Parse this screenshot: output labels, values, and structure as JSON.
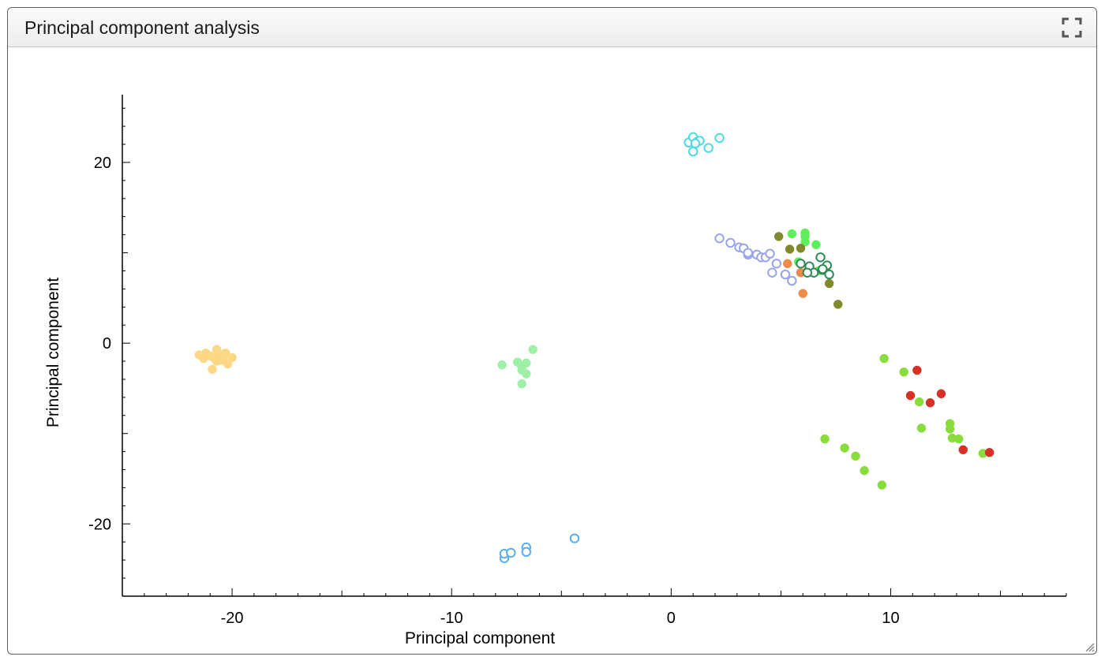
{
  "panel": {
    "title": "Principal component analysis",
    "expand_icon": "fullscreen-icon",
    "resize_icon": "resize-grip-icon"
  },
  "chart_data": {
    "type": "scatter",
    "title": "",
    "xlabel": "Principal component",
    "ylabel": "Principal component",
    "xlim": [
      -25,
      18
    ],
    "ylim": [
      -28,
      27.5
    ],
    "x_ticks": [
      -20,
      -10,
      0,
      10
    ],
    "y_ticks": [
      20,
      0,
      -20
    ],
    "grid": false,
    "legend": "none",
    "series": [
      {
        "color": "#4dd9e0",
        "marker": "circle-open",
        "points": [
          [
            0.8,
            22.2
          ],
          [
            1.0,
            22.8
          ],
          [
            1.2,
            22.3
          ],
          [
            1.3,
            22.4
          ],
          [
            1.7,
            21.6
          ],
          [
            2.2,
            22.7
          ],
          [
            1.0,
            21.2
          ],
          [
            1.1,
            22.1
          ]
        ]
      },
      {
        "color": "#99a4ea",
        "marker": "circle-open",
        "points": [
          [
            2.2,
            11.6
          ],
          [
            2.7,
            11.1
          ],
          [
            3.1,
            10.6
          ],
          [
            3.3,
            10.5
          ],
          [
            3.5,
            9.8
          ],
          [
            3.5,
            10.0
          ],
          [
            3.9,
            9.8
          ],
          [
            4.1,
            9.5
          ],
          [
            4.3,
            9.5
          ],
          [
            4.5,
            9.9
          ],
          [
            4.8,
            8.8
          ],
          [
            4.6,
            7.8
          ],
          [
            5.2,
            7.6
          ],
          [
            5.5,
            6.9
          ]
        ]
      },
      {
        "color": "#f08a4b",
        "marker": "circle-filled",
        "points": [
          [
            5.3,
            8.8
          ],
          [
            5.9,
            7.8
          ],
          [
            6.0,
            5.5
          ],
          [
            6.2,
            8.0
          ]
        ]
      },
      {
        "color": "#5ef05a",
        "marker": "circle-filled",
        "points": [
          [
            5.5,
            12.1
          ],
          [
            6.1,
            12.2
          ],
          [
            6.1,
            11.8
          ],
          [
            6.1,
            11.2
          ],
          [
            6.6,
            10.9
          ],
          [
            5.8,
            9.0
          ],
          [
            6.7,
            8.0
          ]
        ]
      },
      {
        "color": "#808a2c",
        "marker": "circle-filled",
        "points": [
          [
            4.9,
            11.8
          ],
          [
            5.4,
            10.4
          ],
          [
            5.9,
            10.5
          ],
          [
            7.2,
            6.6
          ],
          [
            7.6,
            4.3
          ]
        ]
      },
      {
        "color": "#2e8b57",
        "marker": "circle-open",
        "points": [
          [
            5.9,
            8.8
          ],
          [
            6.3,
            8.5
          ],
          [
            6.5,
            7.8
          ],
          [
            6.8,
            9.5
          ],
          [
            6.9,
            8.1
          ],
          [
            7.1,
            8.6
          ],
          [
            7.2,
            7.6
          ],
          [
            6.9,
            8.2
          ],
          [
            6.2,
            7.8
          ]
        ]
      },
      {
        "color": "#fcd885",
        "marker": "circle-filled",
        "points": [
          [
            -21.5,
            -1.3
          ],
          [
            -21.3,
            -1.7
          ],
          [
            -21.2,
            -1.1
          ],
          [
            -21.0,
            -1.4
          ],
          [
            -20.9,
            -2.9
          ],
          [
            -20.8,
            -1.7
          ],
          [
            -20.7,
            -0.7
          ],
          [
            -20.6,
            -1.2
          ],
          [
            -20.5,
            -1.9
          ],
          [
            -20.4,
            -1.5
          ],
          [
            -20.3,
            -1.1
          ],
          [
            -20.2,
            -2.3
          ],
          [
            -20.0,
            -1.6
          ],
          [
            -20.7,
            -2.0
          ]
        ]
      },
      {
        "color": "#9ef0a7",
        "marker": "circle-filled",
        "points": [
          [
            -7.7,
            -2.4
          ],
          [
            -7.0,
            -2.1
          ],
          [
            -6.8,
            -2.6
          ],
          [
            -6.6,
            -2.2
          ],
          [
            -6.6,
            -3.4
          ],
          [
            -6.8,
            -3.0
          ],
          [
            -6.8,
            -4.5
          ],
          [
            -6.3,
            -0.7
          ]
        ]
      },
      {
        "color": "#5aaeee",
        "marker": "circle-open",
        "points": [
          [
            -7.6,
            -23.8
          ],
          [
            -7.6,
            -23.3
          ],
          [
            -7.3,
            -23.2
          ],
          [
            -6.6,
            -22.6
          ],
          [
            -6.6,
            -23.1
          ],
          [
            -4.4,
            -21.6
          ]
        ]
      },
      {
        "color": "#88dd3c",
        "marker": "circle-filled",
        "points": [
          [
            9.7,
            -1.7
          ],
          [
            10.6,
            -3.2
          ],
          [
            11.3,
            -6.5
          ],
          [
            11.4,
            -9.4
          ],
          [
            12.7,
            -8.9
          ],
          [
            12.7,
            -9.5
          ],
          [
            12.8,
            -10.5
          ],
          [
            13.1,
            -10.6
          ],
          [
            14.2,
            -12.2
          ],
          [
            7.0,
            -10.6
          ],
          [
            7.9,
            -11.6
          ],
          [
            8.4,
            -12.5
          ],
          [
            8.8,
            -14.1
          ],
          [
            9.6,
            -15.7
          ]
        ]
      },
      {
        "color": "#d63027",
        "marker": "circle-filled",
        "points": [
          [
            10.9,
            -5.8
          ],
          [
            11.2,
            -3.0
          ],
          [
            11.8,
            -6.6
          ],
          [
            12.3,
            -5.6
          ],
          [
            13.3,
            -11.8
          ],
          [
            14.5,
            -12.1
          ]
        ]
      }
    ]
  }
}
